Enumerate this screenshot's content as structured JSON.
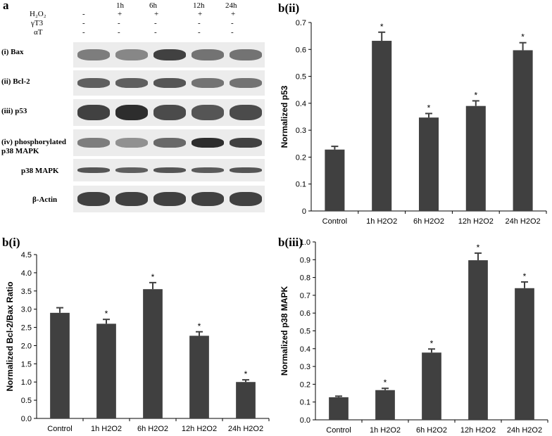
{
  "blot": {
    "panel_label": "a",
    "time_points": [
      "1h",
      "6h",
      "12h",
      "24h"
    ],
    "conditions": [
      {
        "label": "H₂O₂",
        "values": [
          "-",
          "+",
          "+",
          "+",
          "+"
        ]
      },
      {
        "label": "γT3",
        "values": [
          "-",
          "-",
          "-",
          "-",
          "-"
        ]
      },
      {
        "label": "αT",
        "values": [
          "-",
          "-",
          "-",
          "-",
          "-"
        ]
      }
    ],
    "rows": [
      "(i) Bax",
      "(ii) Bcl-2",
      "(iii) p53",
      "(iv) phosphorylated",
      "p38 MAPK",
      "p38 MAPK",
      "β-Actin"
    ]
  },
  "chart_data": [
    {
      "panel_label": "b(ii)",
      "type": "bar",
      "categories": [
        "Control",
        "1h H2O2",
        "6h H2O2",
        "12h H2O2",
        "24h H2O2"
      ],
      "values": [
        0.228,
        0.632,
        0.347,
        0.39,
        0.597
      ],
      "errors": [
        0.012,
        0.032,
        0.015,
        0.019,
        0.028
      ],
      "significance": [
        "",
        "*",
        "*",
        "*",
        "*"
      ],
      "ylabel": "Normalized p53",
      "ylim": [
        0,
        0.7
      ],
      "yticks": [
        "0",
        "0.1",
        "0.2",
        "0.3",
        "0.4",
        "0.5",
        "0.6",
        "0.7"
      ],
      "bar_color": "#404040"
    },
    {
      "panel_label": "b(i)",
      "type": "bar",
      "categories": [
        "Control",
        "1h H2O2",
        "6h H2O2",
        "12h H2O2",
        "24h H2O2"
      ],
      "values": [
        2.9,
        2.6,
        3.55,
        2.27,
        1.0
      ],
      "errors": [
        0.14,
        0.12,
        0.18,
        0.11,
        0.06
      ],
      "significance": [
        "",
        "*",
        "*",
        "*",
        "*"
      ],
      "ylabel": "Normalized Bcl-2/Bax Ratio",
      "ylim": [
        0,
        4.5
      ],
      "yticks": [
        "0.0",
        "0.5",
        "1.0",
        "1.5",
        "2.0",
        "2.5",
        "3.0",
        "3.5",
        "4.0",
        "4.5"
      ],
      "bar_color": "#404040"
    },
    {
      "panel_label": "b(iii)",
      "type": "bar",
      "categories": [
        "Control",
        "1h H2O2",
        "6h H2O2",
        "12h H2O2",
        "24h H2O2"
      ],
      "values": [
        0.127,
        0.167,
        0.378,
        0.897,
        0.74
      ],
      "errors": [
        0.006,
        0.01,
        0.02,
        0.04,
        0.035
      ],
      "significance": [
        "",
        "*",
        "*",
        "*",
        "*"
      ],
      "ylabel": "Normalized p38 MAPK",
      "ylim": [
        0,
        1.0
      ],
      "yticks": [
        "0.0",
        "0.1",
        "0.2",
        "0.3",
        "0.4",
        "0.5",
        "0.6",
        "0.7",
        "0.8",
        "0.9",
        "1.0"
      ],
      "bar_color": "#404040"
    }
  ]
}
